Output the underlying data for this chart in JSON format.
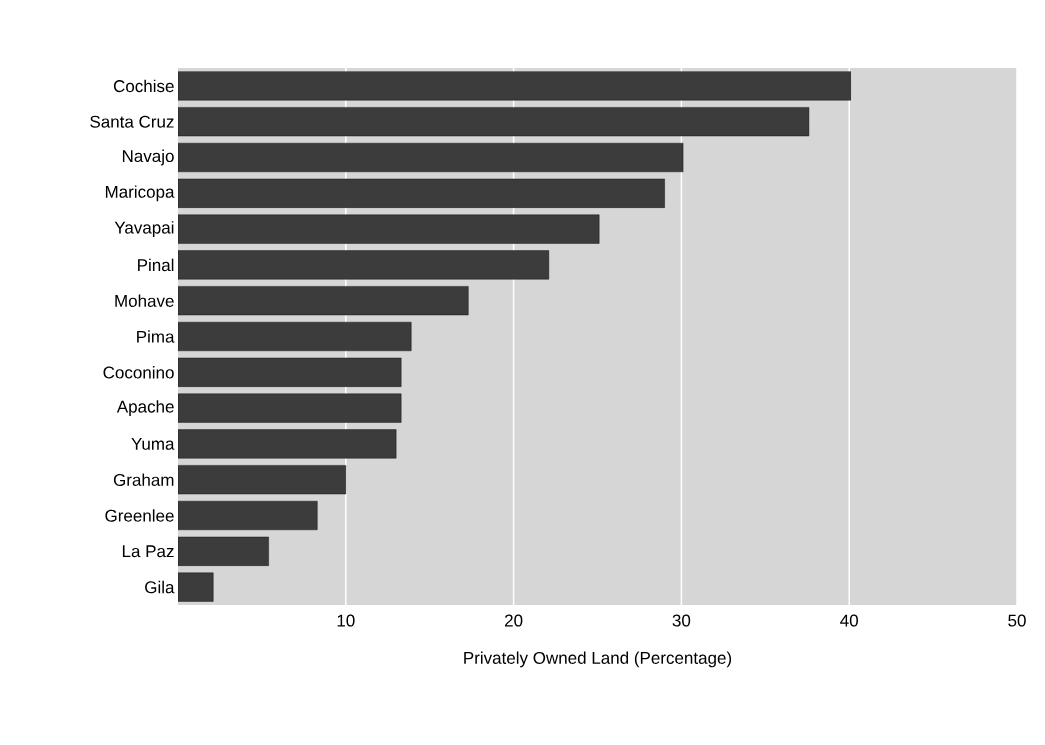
{
  "chart_data": {
    "type": "bar",
    "orientation": "horizontal",
    "xlabel": "Privately Owned Land (Percentage)",
    "categories": [
      "Cochise",
      "Santa Cruz",
      "Navajo",
      "Maricopa",
      "Yavapai",
      "Pinal",
      "Mohave",
      "Pima",
      "Coconino",
      "Apache",
      "Yuma",
      "Graham",
      "Greenlee",
      "La Paz",
      "Gila"
    ],
    "values": [
      40.1,
      37.6,
      30.1,
      29.0,
      25.1,
      22.1,
      17.3,
      13.9,
      13.3,
      13.3,
      13.0,
      10.0,
      8.3,
      5.4,
      2.1
    ],
    "color": "#3c3c3c",
    "xlim": [
      0,
      50
    ],
    "xticks": [
      10,
      20,
      30,
      40,
      50
    ],
    "grid": "x"
  }
}
